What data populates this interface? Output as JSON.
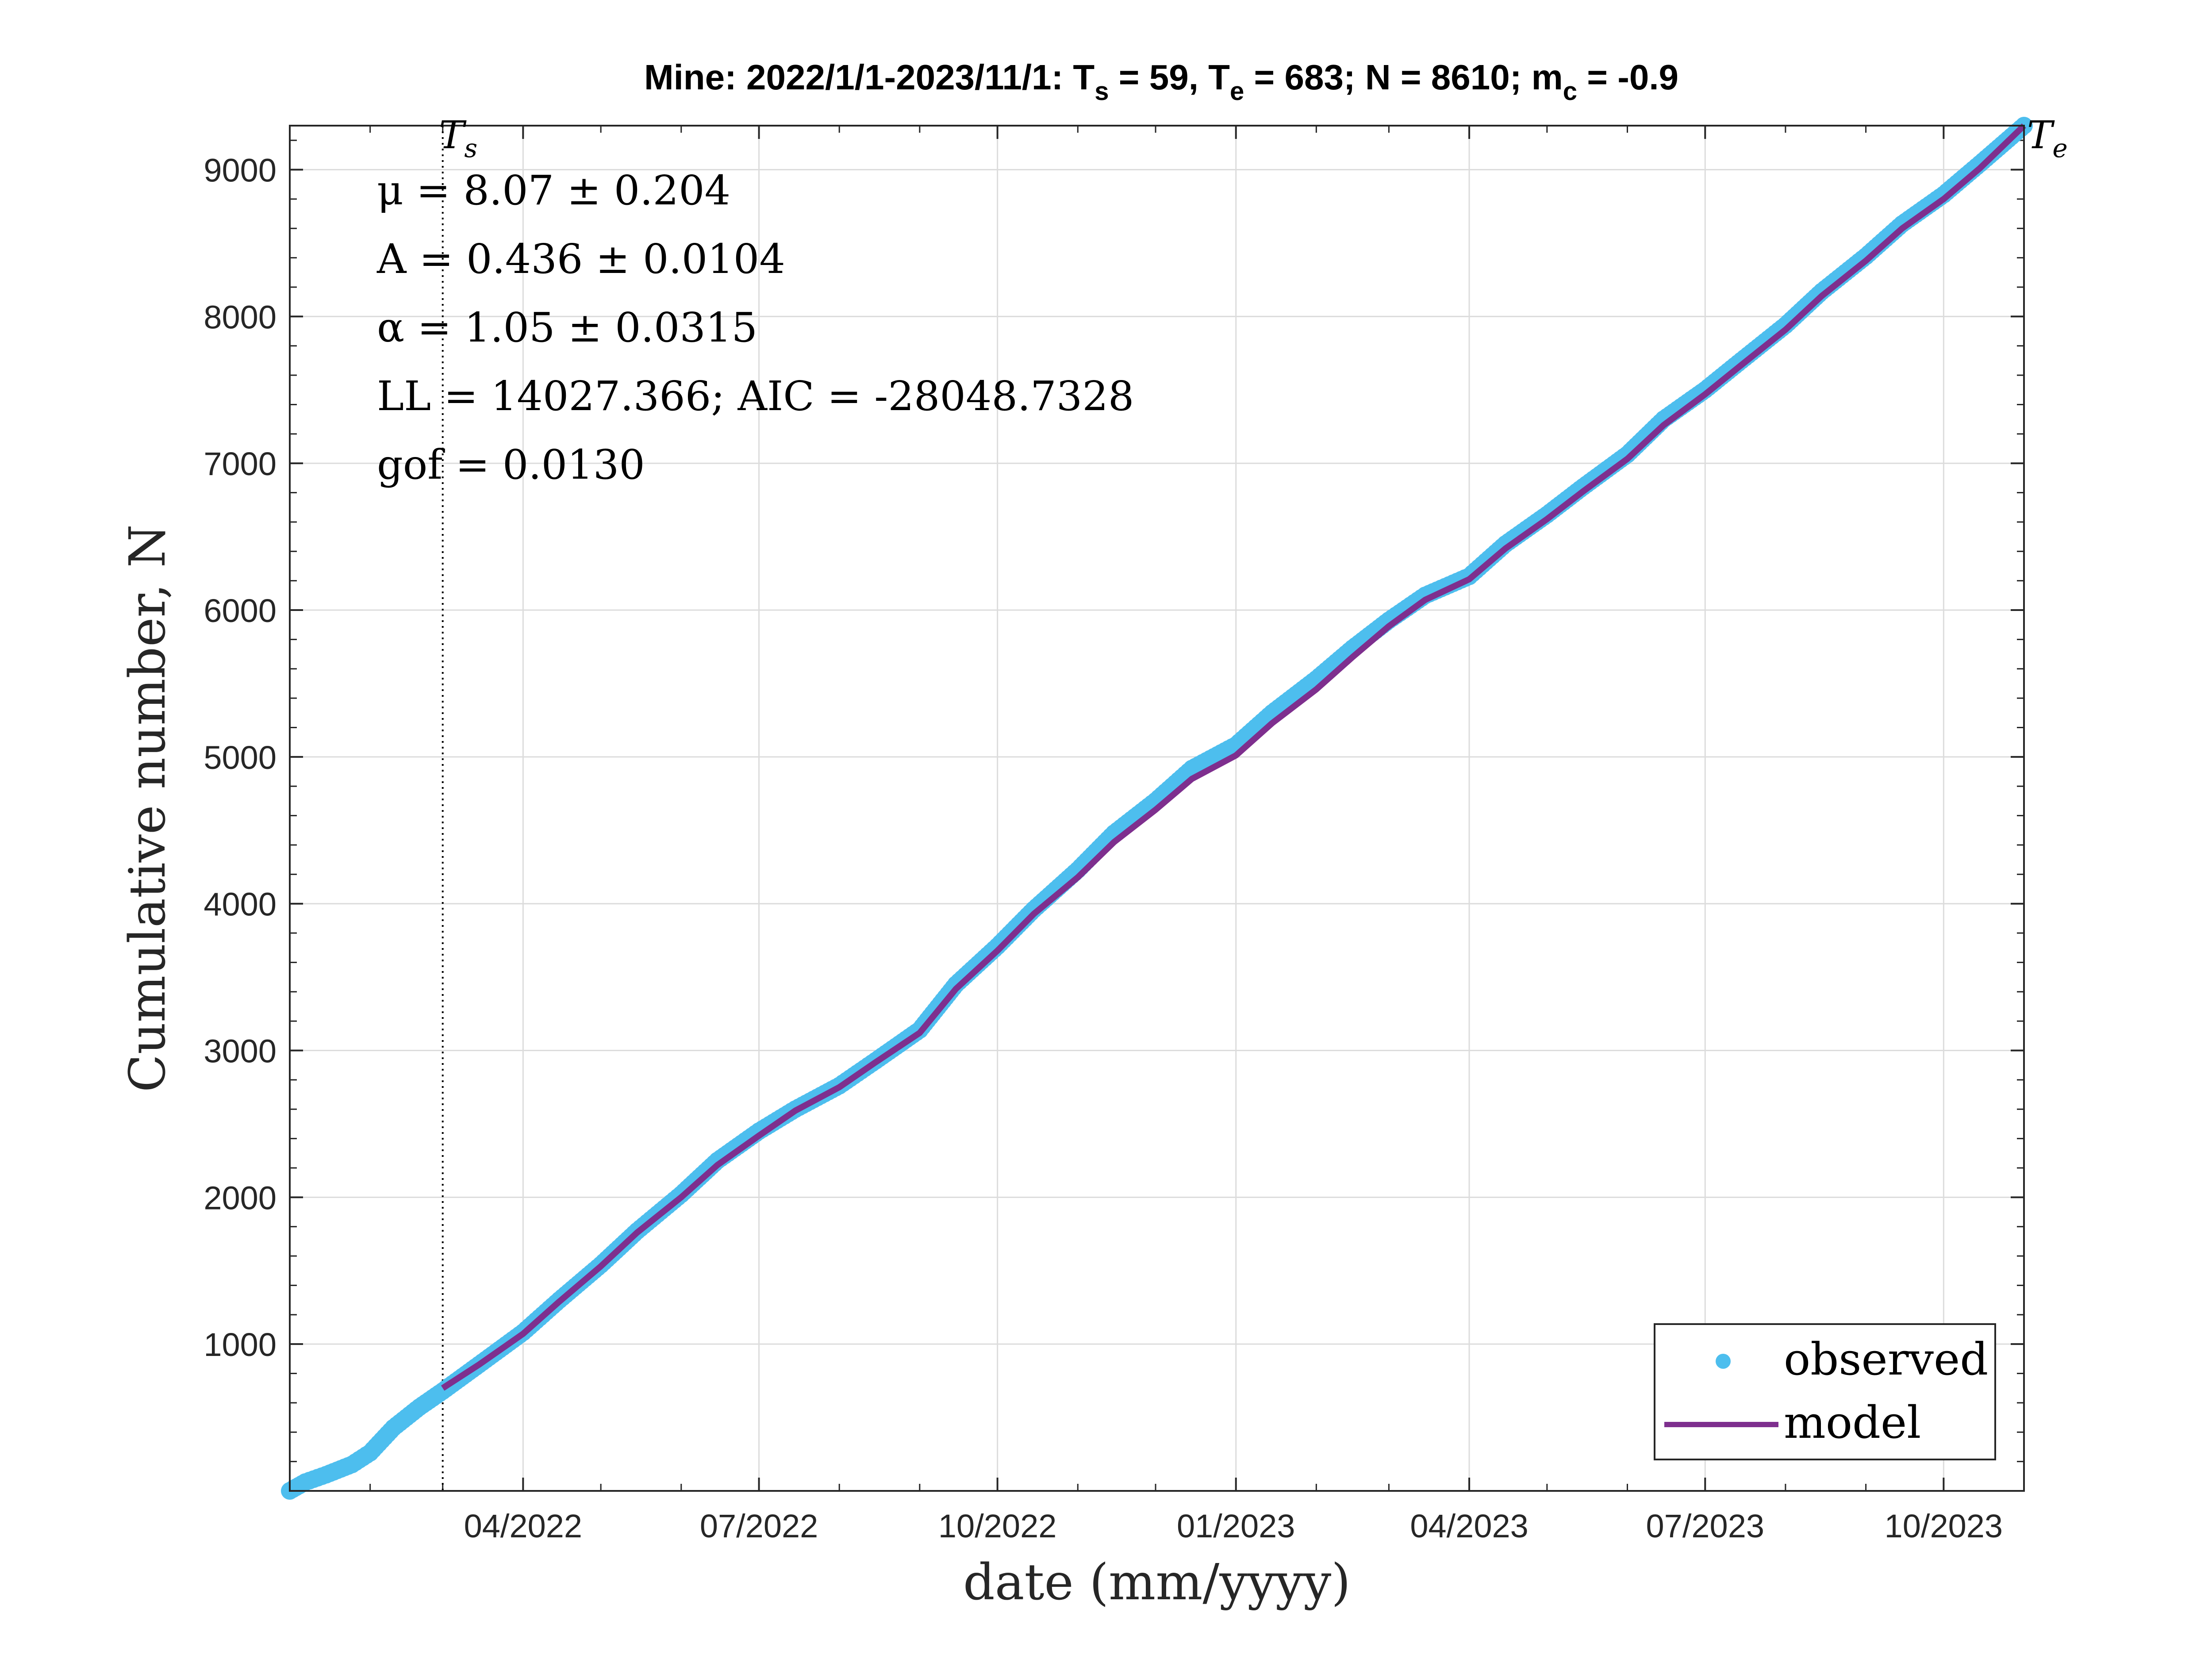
{
  "chart_data": {
    "type": "line",
    "title_parts": {
      "prefix": "Mine: 2022/1/1-2023/11/1: T",
      "ts_sub": "s",
      "ts_val": " = 59, T",
      "te_sub": "e",
      "te_val": " = 683; N = 8610; m",
      "mc_sub": "c",
      "mc_val": " = -0.9"
    },
    "xlabel": "date (mm/yyyy)",
    "ylabel": "Cumulative number, N",
    "x_range": [
      "2022-01-01",
      "2023-11-01"
    ],
    "ylim": [
      0,
      9300
    ],
    "yticks": [
      1000,
      2000,
      3000,
      4000,
      5000,
      6000,
      7000,
      8000,
      9000
    ],
    "xticks": [
      {
        "date": "2022-04-01",
        "label": "04/2022"
      },
      {
        "date": "2022-07-01",
        "label": "07/2022"
      },
      {
        "date": "2022-10-01",
        "label": "10/2022"
      },
      {
        "date": "2023-01-01",
        "label": "01/2023"
      },
      {
        "date": "2023-04-01",
        "label": "04/2023"
      },
      {
        "date": "2023-07-01",
        "label": "07/2023"
      },
      {
        "date": "2023-10-01",
        "label": "10/2023"
      }
    ],
    "grid": true,
    "legend_position": "bottom-right",
    "markers": {
      "ts": {
        "date": "2022-03-01",
        "label": "T",
        "sub": "s"
      },
      "te": {
        "date": "2023-11-01",
        "label": "T",
        "sub": "e"
      }
    },
    "annotations": [
      "μ = 8.07 ± 0.204",
      "A = 0.436 ± 0.0104",
      "α = 1.05 ± 0.0315",
      "LL = 14027.366; AIC = -28048.7328",
      "gof = 0.0130"
    ],
    "series": [
      {
        "name": "observed",
        "style": "points",
        "color": "#4DBEEE",
        "x": [
          "2022-01-01",
          "2022-01-07",
          "2022-01-15",
          "2022-01-25",
          "2022-02-01",
          "2022-02-10",
          "2022-02-20",
          "2022-03-01",
          "2022-03-15",
          "2022-04-01",
          "2022-04-15",
          "2022-05-01",
          "2022-05-15",
          "2022-06-01",
          "2022-06-15",
          "2022-07-01",
          "2022-07-15",
          "2022-08-01",
          "2022-08-15",
          "2022-09-01",
          "2022-09-15",
          "2022-10-01",
          "2022-10-15",
          "2022-11-01",
          "2022-11-15",
          "2022-12-01",
          "2022-12-15",
          "2023-01-01",
          "2023-01-15",
          "2023-02-01",
          "2023-02-15",
          "2023-03-01",
          "2023-03-15",
          "2023-04-01",
          "2023-04-15",
          "2023-05-01",
          "2023-05-15",
          "2023-06-01",
          "2023-06-15",
          "2023-07-01",
          "2023-07-15",
          "2023-08-01",
          "2023-08-15",
          "2023-09-01",
          "2023-09-15",
          "2023-10-01",
          "2023-10-15",
          "2023-11-01"
        ],
        "y": [
          0,
          60,
          110,
          180,
          260,
          430,
          570,
          680,
          860,
          1080,
          1300,
          1540,
          1770,
          2020,
          2250,
          2450,
          2600,
          2760,
          2930,
          3140,
          3450,
          3710,
          3960,
          4230,
          4480,
          4700,
          4920,
          5080,
          5300,
          5530,
          5740,
          5930,
          6100,
          6230,
          6450,
          6650,
          6840,
          7060,
          7300,
          7500,
          7700,
          7940,
          8170,
          8410,
          8630,
          8830,
          9040,
          9300
        ]
      },
      {
        "name": "model",
        "style": "line",
        "color": "#7E2F8E",
        "x": [
          "2022-03-01",
          "2022-03-15",
          "2022-04-01",
          "2022-04-15",
          "2022-05-01",
          "2022-05-15",
          "2022-06-01",
          "2022-06-15",
          "2022-07-01",
          "2022-07-15",
          "2022-08-01",
          "2022-08-15",
          "2022-09-01",
          "2022-09-15",
          "2022-10-01",
          "2022-10-15",
          "2022-11-01",
          "2022-11-15",
          "2022-12-01",
          "2022-12-15",
          "2023-01-01",
          "2023-01-15",
          "2023-02-01",
          "2023-02-15",
          "2023-03-01",
          "2023-03-15",
          "2023-04-01",
          "2023-04-15",
          "2023-05-01",
          "2023-05-15",
          "2023-06-01",
          "2023-06-15",
          "2023-07-01",
          "2023-07-15",
          "2023-08-01",
          "2023-08-15",
          "2023-09-01",
          "2023-09-15",
          "2023-10-01",
          "2023-10-15",
          "2023-11-01"
        ],
        "y": [
          700,
          860,
          1070,
          1290,
          1530,
          1760,
          2000,
          2220,
          2420,
          2590,
          2750,
          2920,
          3120,
          3420,
          3680,
          3930,
          4180,
          4420,
          4640,
          4850,
          5010,
          5230,
          5460,
          5680,
          5890,
          6070,
          6210,
          6420,
          6620,
          6810,
          7030,
          7260,
          7470,
          7670,
          7910,
          8140,
          8380,
          8600,
          8800,
          9010,
          9300
        ]
      }
    ]
  }
}
